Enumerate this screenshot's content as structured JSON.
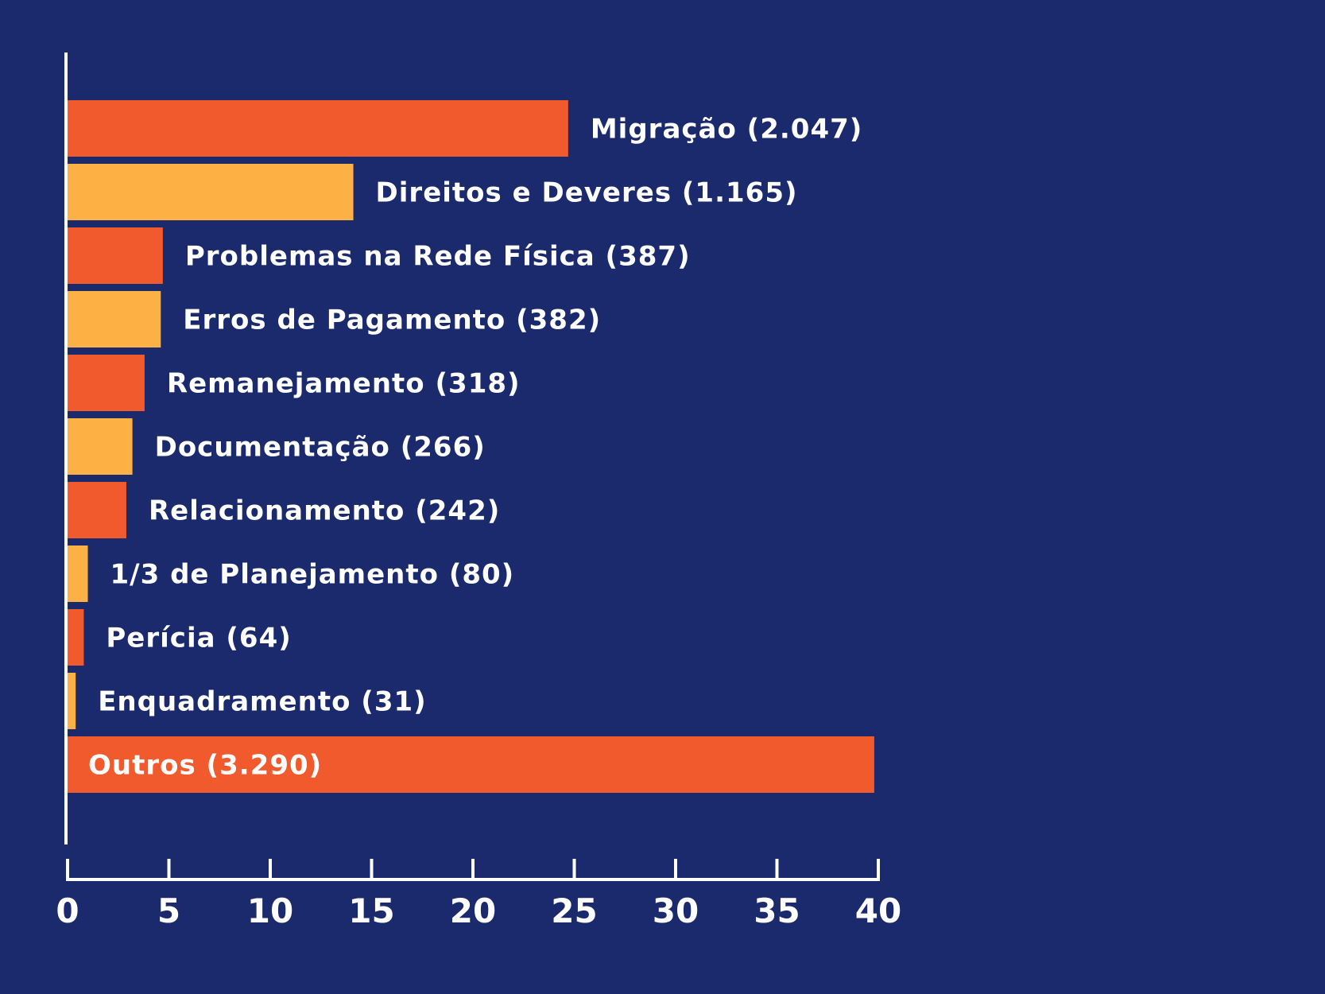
{
  "chart_data": {
    "type": "bar",
    "orientation": "horizontal",
    "categories": [
      "Migração (2.047)",
      "Direitos e Deveres (1.165)",
      "Problemas na Rede Física (387)",
      "Erros de Pagamento (382)",
      "Remanejamento (318)",
      "Documentação (266)",
      "Relacionamento (242)",
      "1/3 de Planejamento (80)",
      "Perícia (64)",
      "Enquadramento (31)",
      "Outros (3.290)"
    ],
    "values": [
      24.7,
      14.1,
      4.7,
      4.6,
      3.8,
      3.2,
      2.9,
      1.0,
      0.8,
      0.4,
      39.8
    ],
    "bar_colors": [
      "#f15a2c",
      "#fdb144",
      "#f15a2c",
      "#fdb144",
      "#f15a2c",
      "#fdb144",
      "#f15a2c",
      "#fdb144",
      "#f15a2c",
      "#fdb144",
      "#f15a2c"
    ],
    "label_inside": [
      false,
      false,
      false,
      false,
      false,
      false,
      false,
      false,
      false,
      false,
      true
    ],
    "xlim": [
      0,
      40
    ],
    "xticks": [
      0,
      5,
      10,
      15,
      20,
      25,
      30,
      35,
      40
    ],
    "title": "",
    "xlabel": "",
    "ylabel": "",
    "grid": false,
    "legend": "none"
  },
  "colors": {
    "background": "#1a2a6c",
    "axis": "#ffffff",
    "text": "#ffffff"
  }
}
